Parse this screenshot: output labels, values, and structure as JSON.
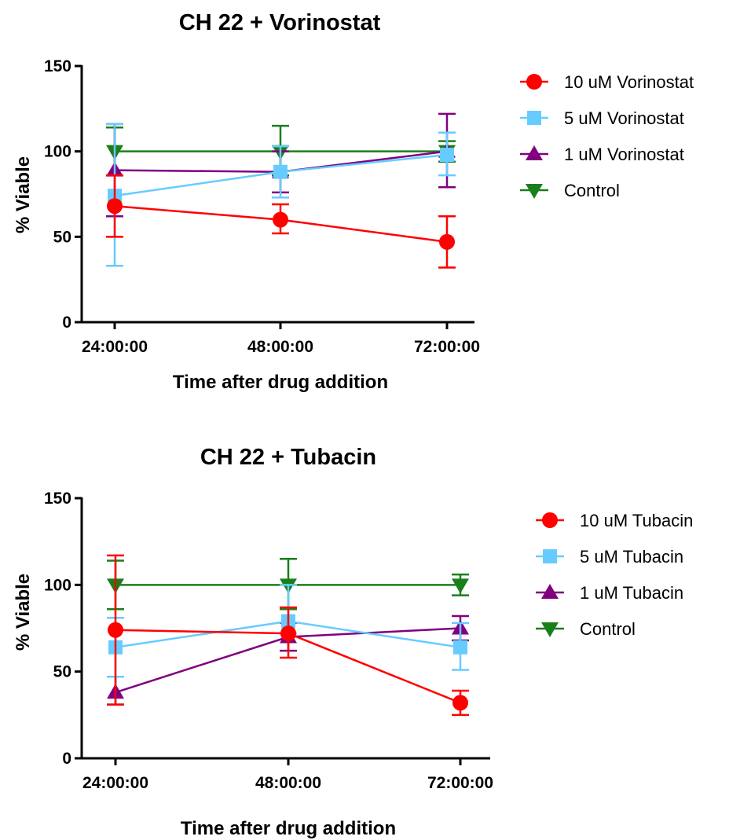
{
  "colors": {
    "high": "#FF0000",
    "mid": "#66CCFF",
    "low": "#800080",
    "control": "#1A7F1A",
    "axis": "#000000"
  },
  "chart_data": [
    {
      "type": "line",
      "title": "CH 22 + Vorinostat",
      "xlabel": "Time after drug addition",
      "ylabel": "% Viable",
      "categories": [
        "24:00:00",
        "48:00:00",
        "72:00:00"
      ],
      "ylim": [
        0,
        150
      ],
      "yticks": [
        "0",
        "50",
        "100",
        "150"
      ],
      "legend_position": "right",
      "series": [
        {
          "name": "10 uM Vorinostat",
          "color_key": "high",
          "marker": "circle",
          "values": [
            68,
            60,
            47
          ],
          "err_low": [
            50,
            52,
            32
          ],
          "err_high": [
            86,
            69,
            62
          ]
        },
        {
          "name": "5 uM Vorinostat",
          "color_key": "mid",
          "marker": "square",
          "values": [
            74,
            88,
            98
          ],
          "err_low": [
            33,
            73,
            86
          ],
          "err_high": [
            116,
            103,
            111
          ]
        },
        {
          "name": "1 uM Vorinostat",
          "color_key": "low",
          "marker": "triangle-up",
          "values": [
            89,
            88,
            100
          ],
          "err_low": [
            62,
            76,
            79
          ],
          "err_high": [
            116,
            100,
            122
          ]
        },
        {
          "name": "Control",
          "color_key": "control",
          "marker": "triangle-down",
          "values": [
            100,
            100,
            100
          ],
          "err_low": [
            86,
            86,
            94
          ],
          "err_high": [
            114,
            115,
            106
          ]
        }
      ]
    },
    {
      "type": "line",
      "title": "CH 22 + Tubacin",
      "xlabel": "Time after drug addition",
      "ylabel": "% Viable",
      "categories": [
        "24:00:00",
        "48:00:00",
        "72:00:00"
      ],
      "ylim": [
        0,
        150
      ],
      "yticks": [
        "0",
        "50",
        "100",
        "150"
      ],
      "legend_position": "right",
      "series": [
        {
          "name": "10 uM Tubacin",
          "color_key": "high",
          "marker": "circle",
          "values": [
            74,
            72,
            32
          ],
          "err_low": [
            31,
            58,
            25
          ],
          "err_high": [
            117,
            87,
            39
          ]
        },
        {
          "name": "5 uM Tubacin",
          "color_key": "mid",
          "marker": "square",
          "values": [
            64,
            79,
            64
          ],
          "err_low": [
            47,
            72,
            51
          ],
          "err_high": [
            81,
            100,
            78
          ]
        },
        {
          "name": "1 uM Tubacin",
          "color_key": "low",
          "marker": "triangle-up",
          "values": [
            38,
            70,
            75
          ],
          "err_low": [
            31,
            62,
            68
          ],
          "err_high": [
            47,
            78,
            82
          ]
        },
        {
          "name": "Control",
          "color_key": "control",
          "marker": "triangle-down",
          "values": [
            100,
            100,
            100
          ],
          "err_low": [
            86,
            86,
            94
          ],
          "err_high": [
            114,
            115,
            106
          ]
        }
      ]
    }
  ]
}
